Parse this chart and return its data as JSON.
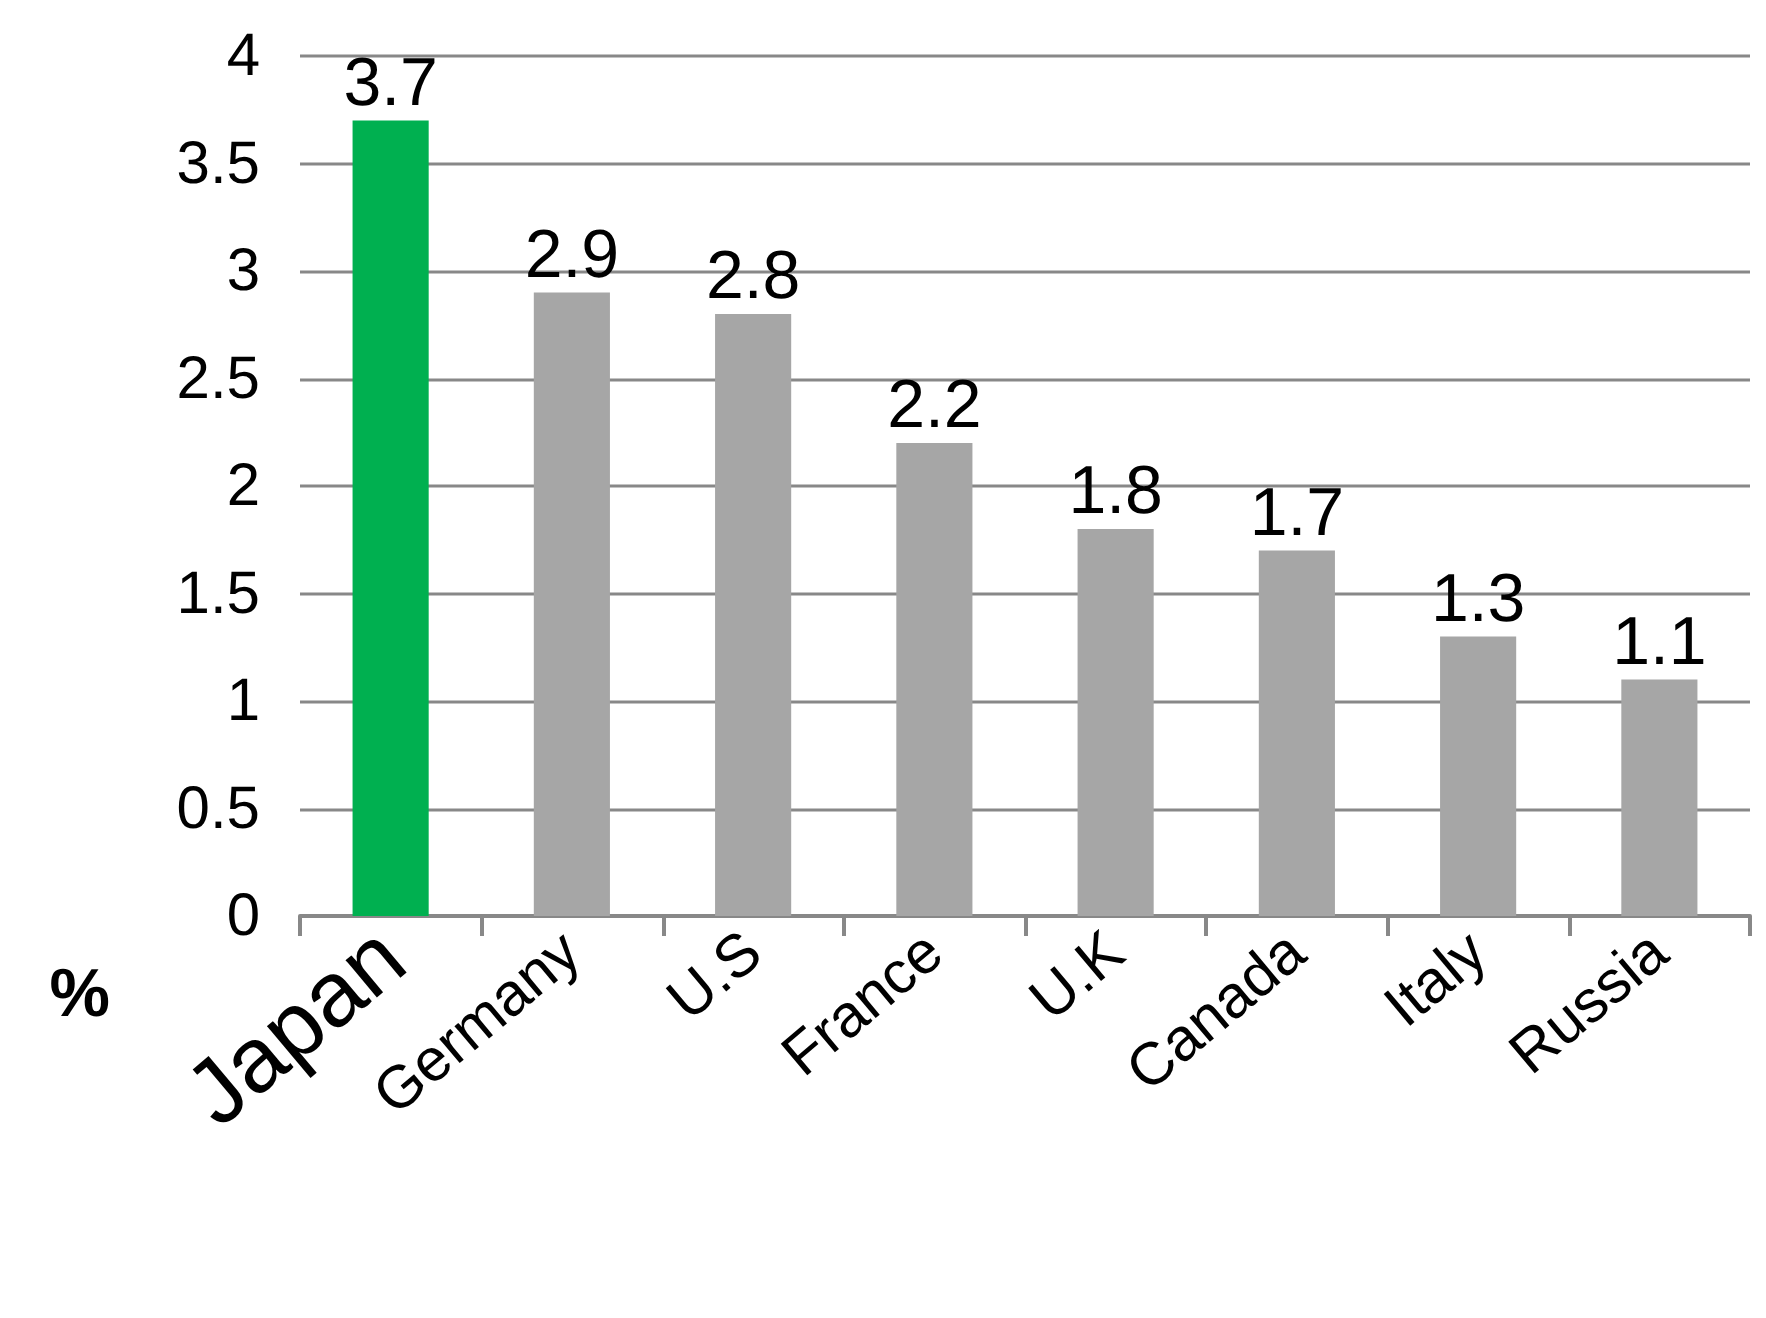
{
  "chart_data": {
    "type": "bar",
    "ylabel": "%",
    "categories": [
      "Japan",
      "Germany",
      "U.S",
      "France",
      "U.K",
      "Canada",
      "Italy",
      "Russia"
    ],
    "values": [
      3.7,
      2.9,
      2.8,
      2.2,
      1.8,
      1.7,
      1.3,
      1.1
    ],
    "colors": [
      "#00b050",
      "#a6a6a6",
      "#a6a6a6",
      "#a6a6a6",
      "#a6a6a6",
      "#a6a6a6",
      "#a6a6a6",
      "#a6a6a6"
    ],
    "ylim": [
      0,
      4
    ],
    "yticks": [
      0,
      0.5,
      1,
      1.5,
      2,
      2.5,
      3,
      3.5,
      4
    ],
    "grid": "y",
    "data_labels": true
  }
}
